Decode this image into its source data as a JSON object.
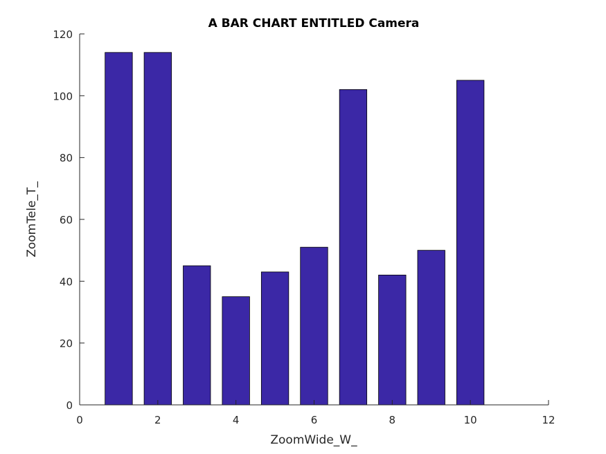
{
  "chart_data": {
    "type": "bar",
    "title": "A BAR CHART ENTITLED Camera",
    "xlabel": "ZoomWide_W_",
    "ylabel": "ZoomTele_T_",
    "x": [
      1,
      2,
      3,
      4,
      5,
      6,
      7,
      8,
      9,
      10
    ],
    "values": [
      114,
      114,
      45,
      35,
      43,
      51,
      102,
      42,
      50,
      105
    ],
    "xlim": [
      0,
      12
    ],
    "ylim": [
      0,
      120
    ],
    "xticks": [
      0,
      2,
      4,
      6,
      8,
      10,
      12
    ],
    "yticks": [
      0,
      20,
      40,
      60,
      80,
      100,
      120
    ],
    "bar_color": "#3b28a6",
    "grid": false,
    "legend": "none"
  }
}
